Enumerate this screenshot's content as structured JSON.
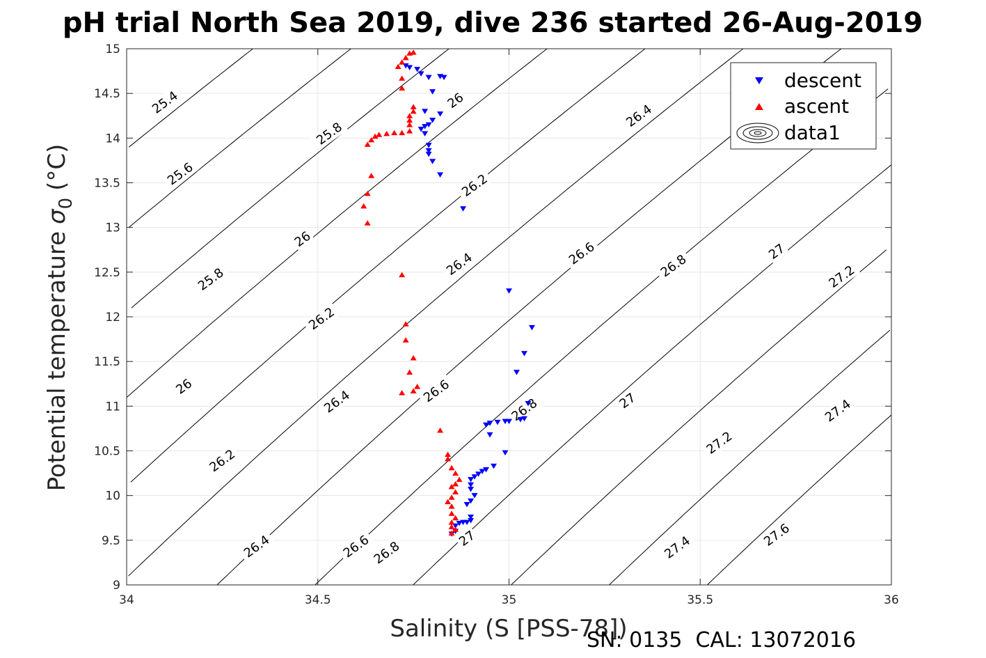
{
  "chart_data": {
    "type": "scatter",
    "title": "pH trial North Sea 2019, dive 236 started 26-Aug-2019",
    "xlabel": "Salinity (S [PSS-78])",
    "ylabel": "Potential temperature",
    "ylabel_symbol": "σ",
    "ylabel_subscript": "0",
    "ylabel_unit": "(°C)",
    "xlim": [
      34,
      36
    ],
    "ylim": [
      9,
      15
    ],
    "xticks": [
      34,
      34.5,
      35,
      35.5,
      36
    ],
    "yticks": [
      9,
      9.5,
      10,
      10.5,
      11,
      11.5,
      12,
      12.5,
      13,
      13.5,
      14,
      14.5,
      15
    ],
    "grid": true,
    "legend_position": "top-right",
    "footer": "SN: 0135  CAL: 13072016",
    "series": [
      {
        "name": "descent",
        "marker": "triangle-down",
        "color": "#0000ff",
        "points": [
          [
            34.73,
            14.81
          ],
          [
            34.74,
            14.79
          ],
          [
            34.76,
            14.77
          ],
          [
            34.77,
            14.72
          ],
          [
            34.79,
            14.68
          ],
          [
            34.82,
            14.69
          ],
          [
            34.83,
            14.68
          ],
          [
            34.8,
            14.52
          ],
          [
            34.78,
            14.3
          ],
          [
            34.82,
            14.27
          ],
          [
            34.8,
            14.2
          ],
          [
            34.79,
            14.15
          ],
          [
            34.78,
            14.13
          ],
          [
            34.77,
            14.1
          ],
          [
            34.78,
            14.05
          ],
          [
            34.79,
            13.92
          ],
          [
            34.79,
            13.86
          ],
          [
            34.79,
            13.82
          ],
          [
            34.8,
            13.74
          ],
          [
            34.82,
            13.59
          ],
          [
            34.88,
            13.21
          ],
          [
            35.0,
            12.29
          ],
          [
            35.06,
            11.88
          ],
          [
            35.04,
            11.59
          ],
          [
            35.02,
            11.38
          ],
          [
            35.05,
            11.03
          ],
          [
            35.04,
            10.86
          ],
          [
            35.03,
            10.85
          ],
          [
            35.0,
            10.83
          ],
          [
            34.99,
            10.83
          ],
          [
            34.97,
            10.82
          ],
          [
            34.95,
            10.81
          ],
          [
            34.94,
            10.79
          ],
          [
            34.95,
            10.68
          ],
          [
            34.99,
            10.48
          ],
          [
            34.96,
            10.33
          ],
          [
            34.94,
            10.29
          ],
          [
            34.93,
            10.27
          ],
          [
            34.92,
            10.24
          ],
          [
            34.91,
            10.21
          ],
          [
            34.9,
            10.18
          ],
          [
            34.9,
            10.12
          ],
          [
            34.9,
            10.07
          ],
          [
            34.91,
            10.0
          ],
          [
            34.9,
            9.94
          ],
          [
            34.89,
            9.9
          ],
          [
            34.9,
            9.76
          ],
          [
            34.9,
            9.72
          ],
          [
            34.89,
            9.7
          ],
          [
            34.88,
            9.7
          ],
          [
            34.87,
            9.69
          ],
          [
            34.86,
            9.66
          ],
          [
            34.86,
            9.6
          ],
          [
            34.85,
            9.57
          ]
        ]
      },
      {
        "name": "ascent",
        "marker": "triangle-up",
        "color": "#ff0000",
        "points": [
          [
            34.75,
            14.96
          ],
          [
            34.74,
            14.95
          ],
          [
            34.73,
            14.9
          ],
          [
            34.72,
            14.85
          ],
          [
            34.71,
            14.8
          ],
          [
            34.72,
            14.67
          ],
          [
            34.72,
            14.56
          ],
          [
            34.75,
            14.35
          ],
          [
            34.75,
            14.3
          ],
          [
            34.74,
            14.25
          ],
          [
            34.74,
            14.2
          ],
          [
            34.74,
            14.15
          ],
          [
            34.74,
            14.08
          ],
          [
            34.72,
            14.06
          ],
          [
            34.7,
            14.06
          ],
          [
            34.68,
            14.05
          ],
          [
            34.66,
            14.04
          ],
          [
            34.65,
            14.02
          ],
          [
            34.64,
            13.98
          ],
          [
            34.63,
            13.93
          ],
          [
            34.64,
            13.58
          ],
          [
            34.63,
            13.38
          ],
          [
            34.62,
            13.24
          ],
          [
            34.63,
            13.05
          ],
          [
            34.72,
            12.47
          ],
          [
            34.73,
            11.92
          ],
          [
            34.73,
            11.74
          ],
          [
            34.75,
            11.54
          ],
          [
            34.74,
            11.38
          ],
          [
            34.76,
            11.22
          ],
          [
            34.72,
            11.15
          ],
          [
            34.75,
            11.17
          ],
          [
            34.82,
            10.73
          ],
          [
            34.84,
            10.46
          ],
          [
            34.84,
            10.41
          ],
          [
            34.85,
            10.31
          ],
          [
            34.86,
            10.25
          ],
          [
            34.87,
            10.18
          ],
          [
            34.86,
            10.13
          ],
          [
            34.85,
            10.1
          ],
          [
            34.86,
            10.04
          ],
          [
            34.85,
            9.98
          ],
          [
            34.84,
            9.93
          ],
          [
            34.85,
            9.88
          ],
          [
            34.85,
            9.8
          ],
          [
            34.86,
            9.75
          ],
          [
            34.85,
            9.7
          ],
          [
            34.85,
            9.65
          ],
          [
            34.86,
            9.62
          ],
          [
            34.85,
            9.58
          ]
        ]
      },
      {
        "name": "data1",
        "marker": "contour"
      }
    ],
    "contour_levels": [
      25.4,
      25.6,
      25.8,
      26,
      26.2,
      26.4,
      26.6,
      26.8,
      27,
      27.2,
      27.4,
      27.6
    ],
    "contour_labels": [
      [
        "25.4",
        34.1,
        14.4
      ],
      [
        "25.6",
        34.14,
        13.6
      ],
      [
        "25.8",
        34.22,
        12.42
      ],
      [
        "26",
        34.15,
        11.22
      ],
      [
        "26.2",
        34.25,
        10.39
      ],
      [
        "26.4",
        34.34,
        9.43
      ],
      [
        "25.8",
        34.53,
        14.05
      ],
      [
        "26",
        34.46,
        12.87
      ],
      [
        "26.2",
        34.51,
        11.98
      ],
      [
        "26.4",
        34.55,
        11.05
      ],
      [
        "26.6",
        34.6,
        9.43
      ],
      [
        "26",
        34.86,
        14.42
      ],
      [
        "26.2",
        34.91,
        13.47
      ],
      [
        "26.4",
        34.87,
        12.59
      ],
      [
        "26.6",
        34.81,
        11.17
      ],
      [
        "26.8",
        34.68,
        9.36
      ],
      [
        "26.4",
        35.34,
        14.25
      ],
      [
        "26.6",
        35.19,
        12.71
      ],
      [
        "26.8",
        35.04,
        10.96
      ],
      [
        "27",
        34.89,
        9.52
      ],
      [
        "26.8",
        35.43,
        12.57
      ],
      [
        "27",
        35.31,
        11.06
      ],
      [
        "27.2",
        35.55,
        10.59
      ],
      [
        "27.4",
        35.44,
        9.42
      ],
      [
        "27",
        35.7,
        12.73
      ],
      [
        "27.2",
        35.87,
        12.45
      ],
      [
        "27.4",
        35.86,
        10.95
      ],
      [
        "27.6",
        35.7,
        9.56
      ]
    ]
  }
}
